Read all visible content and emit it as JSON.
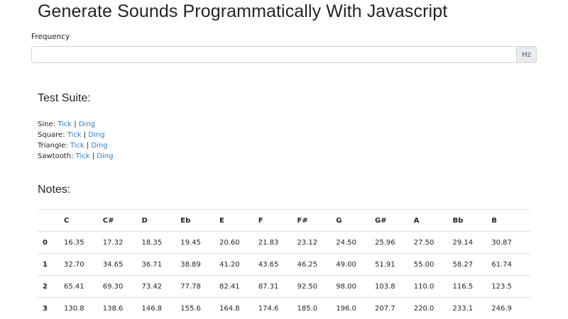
{
  "header": {
    "title": "Generate Sounds Programmatically With Javascript"
  },
  "frequency": {
    "label": "Frequency",
    "value": "",
    "placeholder": "",
    "unit": "Hz"
  },
  "test_suite": {
    "heading": "Test Suite:",
    "rows": [
      {
        "label": "Sine:",
        "tick": "Tick",
        "ding": "Ding"
      },
      {
        "label": "Square:",
        "tick": "Tick",
        "ding": "Ding"
      },
      {
        "label": "Triangle:",
        "tick": "Tick",
        "ding": "Ding"
      },
      {
        "label": "Sawtooth:",
        "tick": "Tick",
        "ding": "Ding"
      }
    ],
    "separator": "|"
  },
  "notes": {
    "heading": "Notes:",
    "columns": [
      "",
      "C",
      "C#",
      "D",
      "Eb",
      "E",
      "F",
      "F#",
      "G",
      "G#",
      "A",
      "Bb",
      "B"
    ],
    "rows": [
      {
        "octave": "0",
        "values": [
          "16.35",
          "17.32",
          "18.35",
          "19.45",
          "20.60",
          "21.83",
          "23.12",
          "24.50",
          "25.96",
          "27.50",
          "29.14",
          "30.87"
        ]
      },
      {
        "octave": "1",
        "values": [
          "32.70",
          "34.65",
          "36.71",
          "38.89",
          "41.20",
          "43.65",
          "46.25",
          "49.00",
          "51.91",
          "55.00",
          "58.27",
          "61.74"
        ]
      },
      {
        "octave": "2",
        "values": [
          "65.41",
          "69.30",
          "73.42",
          "77.78",
          "82.41",
          "87.31",
          "92.50",
          "98.00",
          "103.8",
          "110.0",
          "116.5",
          "123.5"
        ]
      },
      {
        "octave": "3",
        "values": [
          "130.8",
          "138.6",
          "146.8",
          "155.6",
          "164.8",
          "174.6",
          "185.0",
          "196.0",
          "207.7",
          "220.0",
          "233.1",
          "246.9"
        ]
      }
    ]
  },
  "colors": {
    "link": "#2a7fd4",
    "text": "#212529",
    "border": "#dee2e6",
    "addon_bg": "#e9ecef"
  }
}
